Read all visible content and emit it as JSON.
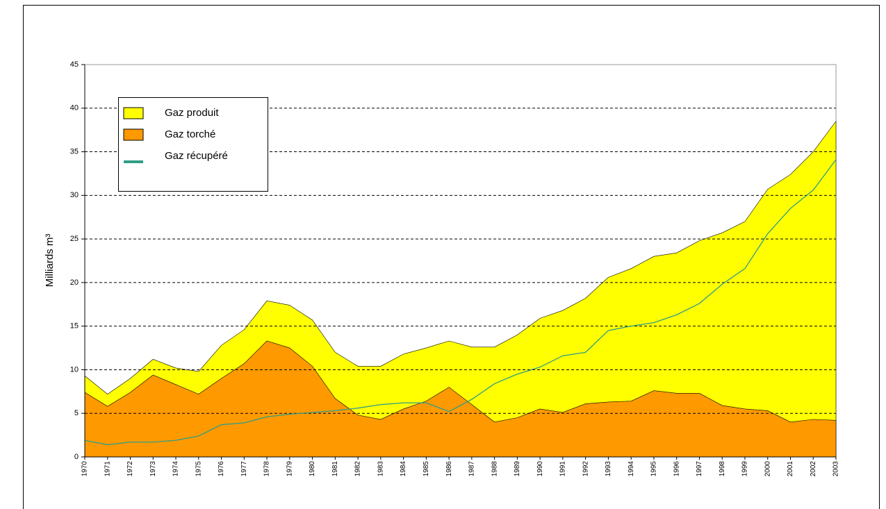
{
  "chart_data": {
    "type": "area",
    "y_label": "Milliards m³",
    "categories": [
      "1970",
      "1971",
      "1972",
      "1973",
      "1974",
      "1975",
      "1976",
      "1977",
      "1978",
      "1979",
      "1980",
      "1981",
      "1982",
      "1983",
      "1984",
      "1985",
      "1986",
      "1987",
      "1988",
      "1989",
      "1990",
      "1991",
      "1992",
      "1993",
      "1994",
      "1995",
      "1996",
      "1997",
      "1998",
      "1999",
      "2000",
      "2001",
      "2002",
      "2003"
    ],
    "series": [
      {
        "name": "Gaz produit",
        "type": "area",
        "color": "#ffff00",
        "values": [
          9.3,
          7.2,
          9.0,
          11.2,
          10.2,
          9.8,
          12.8,
          14.6,
          17.9,
          17.4,
          15.7,
          12.0,
          10.4,
          10.4,
          11.8,
          12.5,
          13.3,
          12.6,
          12.6,
          14.0,
          15.9,
          16.8,
          18.2,
          20.6,
          21.6,
          23.0,
          23.4,
          24.8,
          25.7,
          27.0,
          30.7,
          32.4,
          35.0,
          38.5
        ]
      },
      {
        "name": "Gaz torché",
        "type": "area",
        "color": "#ff9900",
        "values": [
          7.4,
          5.8,
          7.4,
          9.4,
          8.3,
          7.2,
          9.0,
          10.7,
          13.3,
          12.5,
          10.4,
          6.7,
          4.8,
          4.3,
          5.5,
          6.4,
          8.0,
          6.0,
          4.0,
          4.5,
          5.5,
          5.1,
          6.1,
          6.3,
          6.4,
          7.6,
          7.3,
          7.3,
          5.9,
          5.5,
          5.3,
          4.0,
          4.3,
          4.2
        ]
      },
      {
        "name": "Gaz récupéré",
        "type": "line",
        "color": "#2e9e86",
        "values": [
          1.9,
          1.4,
          1.7,
          1.7,
          1.9,
          2.4,
          3.7,
          3.9,
          4.6,
          4.9,
          5.1,
          5.3,
          5.6,
          6.0,
          6.2,
          6.2,
          5.2,
          6.6,
          8.4,
          9.5,
          10.3,
          11.6,
          12.0,
          14.5,
          15.0,
          15.4,
          16.3,
          17.6,
          19.8,
          21.6,
          25.6,
          28.5,
          30.6,
          34.1
        ]
      }
    ],
    "ylim": [
      0,
      45
    ],
    "yticks": [
      0,
      5,
      10,
      15,
      20,
      25,
      30,
      35,
      40,
      45
    ],
    "grid": true,
    "legend": "upper left"
  }
}
